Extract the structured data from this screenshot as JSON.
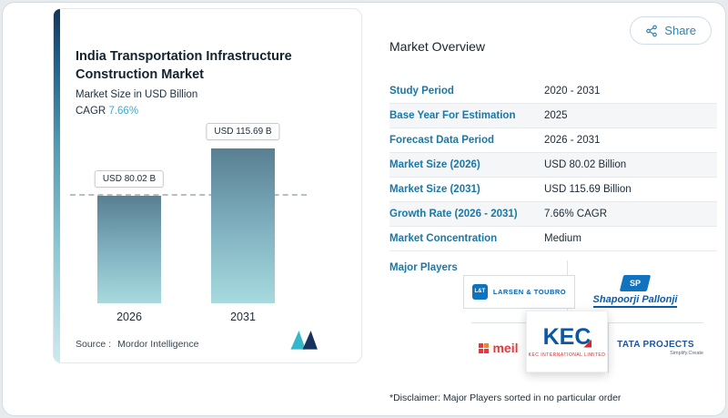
{
  "share": {
    "label": "Share"
  },
  "chart": {
    "title": "India Transportation Infrastructure Construction Market",
    "subtitle": "Market Size in USD Billion",
    "cagr_label": "CAGR",
    "cagr_value": "7.66%",
    "source_label": "Source :",
    "source_value": "Mordor Intelligence"
  },
  "chart_data": {
    "type": "bar",
    "title": "India Transportation Infrastructure Construction Market",
    "ylabel": "Market Size in USD Billion",
    "categories": [
      "2026",
      "2031"
    ],
    "values": [
      80.02,
      115.69
    ],
    "bar_labels": [
      "USD 80.02 B",
      "USD 115.69 B"
    ],
    "unit": "USD Billion",
    "cagr": "7.66%",
    "ylim": [
      0,
      130
    ],
    "grid": false,
    "annotations": [
      "dashed reference line at 2026 bar top level"
    ]
  },
  "overview": {
    "title": "Market Overview",
    "rows": [
      {
        "label": "Study Period",
        "value": "2020 - 2031"
      },
      {
        "label": "Base Year For Estimation",
        "value": "2025"
      },
      {
        "label": "Forecast Data Period",
        "value": "2026 - 2031"
      },
      {
        "label": "Market Size (2026)",
        "value": "USD 80.02 Billion"
      },
      {
        "label": "Market Size (2031)",
        "value": "USD 115.69 Billion"
      },
      {
        "label": "Growth Rate (2026 - 2031)",
        "value": "7.66% CAGR"
      },
      {
        "label": "Market Concentration",
        "value": "Medium"
      }
    ],
    "major_players_label": "Major Players",
    "players": [
      {
        "name": "LARSEN & TOUBRO",
        "mark": "L&T"
      },
      {
        "name": "Shapoorji Pallonji",
        "mark": "SP"
      },
      {
        "name": "meil"
      },
      {
        "name": "KEC",
        "caption": "KEC INTERNATIONAL LIMITED"
      },
      {
        "name": "TATA PROJECTS",
        "caption": "Simplify.Create"
      }
    ],
    "disclaimer": "*Disclaimer: Major Players sorted in no particular order"
  },
  "colors": {
    "accent_blue": "#1878a8",
    "teal": "#47a9c8",
    "bar_top": "#587f92",
    "bar_bottom": "#a7dade",
    "navy_text": "#1c2b36",
    "logo_blue": "#0b62ac",
    "logo_red": "#e23a3c"
  }
}
